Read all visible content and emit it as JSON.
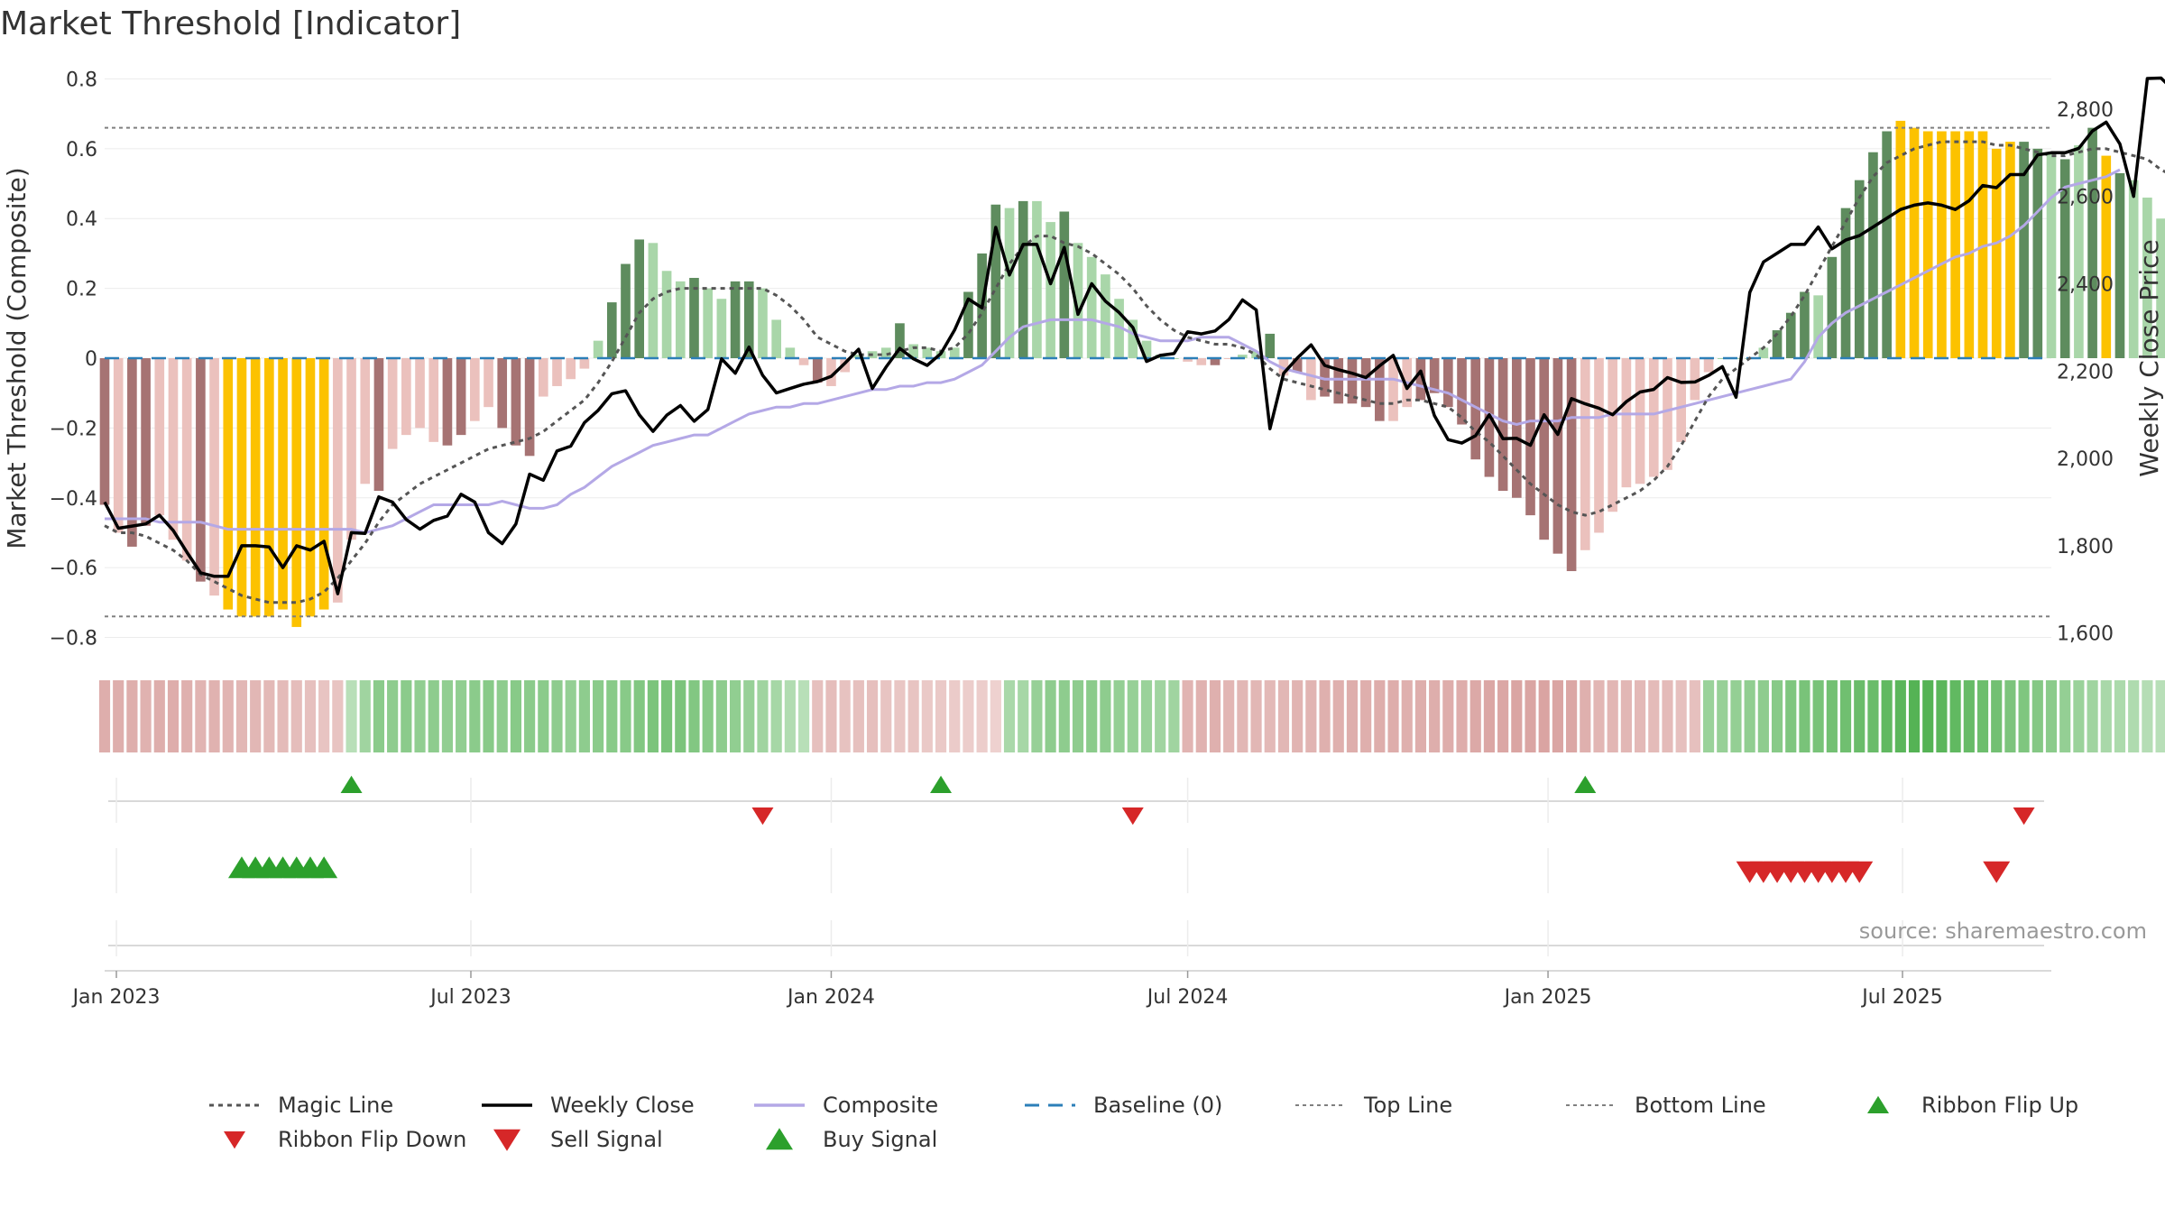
{
  "title": "Market Threshold [Indicator]",
  "source": "source: sharemaestro.com",
  "colors": {
    "bull_dark": "#5e8c5e",
    "bull_light": "#a9d6a9",
    "bear_dark": "#a67373",
    "bear_light": "#ebc1bd",
    "extreme": "#fcc200",
    "weekly_close": "#000000",
    "composite": "#b4a8e6",
    "magic": "#555555",
    "baseline": "#2c7fb8",
    "threshold": "#808080",
    "buy": "#2ca02c",
    "sell": "#d62728"
  },
  "chart_data": {
    "type": "bar",
    "title": "Market Threshold [Indicator]",
    "ylabel_left": "Market Threshold (Composite)",
    "ylabel_right": "Weekly Close Price",
    "ylim_left": [
      -0.84,
      0.84
    ],
    "ylim_right": [
      1558,
      2901
    ],
    "yticks_left": [
      0.8,
      0.6,
      0.4,
      0.2,
      0,
      -0.2,
      -0.4,
      -0.6,
      -0.8
    ],
    "yticks_left_labels": [
      "0.8",
      "0.6",
      "0.4",
      "0.2",
      "0",
      "−0.2",
      "−0.4",
      "−0.6",
      "−0.8"
    ],
    "yticks_right": [
      2800,
      2600,
      2400,
      2200,
      2000,
      1800,
      1600
    ],
    "yticks_right_labels": [
      "2,800",
      "2,600",
      "2,400",
      "2,200",
      "2,000",
      "1,800",
      "1,600"
    ],
    "x_start": "2022-12-26",
    "x_end": "2025-09-15",
    "xticks": [
      {
        "date": "2023-01-01",
        "label": "Jan 2023"
      },
      {
        "date": "2023-07-01",
        "label": "Jul 2023"
      },
      {
        "date": "2024-01-01",
        "label": "Jan 2024"
      },
      {
        "date": "2024-07-01",
        "label": "Jul 2024"
      },
      {
        "date": "2025-01-01",
        "label": "Jan 2025"
      },
      {
        "date": "2025-07-01",
        "label": "Jul 2025"
      }
    ],
    "top_line": 0.66,
    "bottom_line": -0.74,
    "baseline": 0,
    "weeks_start": "2022-12-26",
    "bars": [
      -0.42,
      -0.5,
      -0.54,
      -0.48,
      -0.45,
      -0.52,
      -0.58,
      -0.64,
      -0.68,
      -0.72,
      -0.74,
      -0.74,
      -0.74,
      -0.72,
      -0.77,
      -0.74,
      -0.72,
      -0.7,
      -0.52,
      -0.36,
      -0.38,
      -0.26,
      -0.22,
      -0.2,
      -0.24,
      -0.25,
      -0.22,
      -0.18,
      -0.14,
      -0.2,
      -0.25,
      -0.28,
      -0.11,
      -0.08,
      -0.06,
      -0.03,
      0.05,
      0.16,
      0.27,
      0.34,
      0.33,
      0.25,
      0.22,
      0.23,
      0.2,
      0.17,
      0.22,
      0.22,
      0.2,
      0.11,
      0.03,
      -0.02,
      -0.07,
      -0.08,
      -0.04,
      0.01,
      0.02,
      0.03,
      0.1,
      0.04,
      0.03,
      0.02,
      0.03,
      0.19,
      0.3,
      0.44,
      0.43,
      0.45,
      0.45,
      0.39,
      0.42,
      0.33,
      0.29,
      0.24,
      0.17,
      0.11,
      0.05,
      0.01,
      0.0,
      -0.01,
      -0.02,
      -0.02,
      0.0,
      0.01,
      0.02,
      0.07,
      -0.05,
      -0.04,
      -0.12,
      -0.11,
      -0.13,
      -0.13,
      -0.14,
      -0.18,
      -0.18,
      -0.14,
      -0.12,
      -0.1,
      -0.14,
      -0.19,
      -0.29,
      -0.34,
      -0.38,
      -0.4,
      -0.45,
      -0.52,
      -0.56,
      -0.61,
      -0.55,
      -0.5,
      -0.44,
      -0.37,
      -0.36,
      -0.34,
      -0.32,
      -0.24,
      -0.12,
      -0.04,
      0.0,
      0.0,
      0.0,
      0.03,
      0.08,
      0.13,
      0.19,
      0.18,
      0.29,
      0.43,
      0.51,
      0.59,
      0.65,
      0.68,
      0.66,
      0.65,
      0.65,
      0.65,
      0.65,
      0.65,
      0.6,
      0.62,
      0.62,
      0.6,
      0.59,
      0.57,
      0.61,
      0.66,
      0.58,
      0.53,
      0.51,
      0.46,
      0.4
    ],
    "bar_colors": [
      "bear_dark",
      "bear_light",
      "bear_dark",
      "bear_dark",
      "bear_light",
      "bear_light",
      "bear_light",
      "bear_dark",
      "bear_light",
      "extreme",
      "extreme",
      "extreme",
      "extreme",
      "extreme",
      "extreme",
      "extreme",
      "extreme",
      "bear_light",
      "bear_light",
      "bear_light",
      "bear_dark",
      "bear_light",
      "bear_light",
      "bear_light",
      "bear_light",
      "bear_dark",
      "bear_dark",
      "bear_light",
      "bear_light",
      "bear_dark",
      "bear_dark",
      "bear_dark",
      "bear_light",
      "bear_light",
      "bear_light",
      "bear_light",
      "bull_light",
      "bull_dark",
      "bull_dark",
      "bull_dark",
      "bull_light",
      "bull_light",
      "bull_light",
      "bull_dark",
      "bull_light",
      "bull_light",
      "bull_dark",
      "bull_dark",
      "bull_light",
      "bull_light",
      "bull_light",
      "bear_light",
      "bear_dark",
      "bear_light",
      "bear_light",
      "bull_light",
      "bull_light",
      "bull_light",
      "bull_dark",
      "bull_light",
      "bull_light",
      "bull_light",
      "bull_light",
      "bull_dark",
      "bull_dark",
      "bull_dark",
      "bull_light",
      "bull_dark",
      "bull_light",
      "bull_light",
      "bull_dark",
      "bull_light",
      "bull_light",
      "bull_light",
      "bull_light",
      "bull_light",
      "bull_light",
      "bull_light",
      "bull_light",
      "bear_light",
      "bear_light",
      "bear_dark",
      "bear_light",
      "bull_light",
      "bull_light",
      "bull_dark",
      "bear_light",
      "bear_dark",
      "bear_light",
      "bear_dark",
      "bear_dark",
      "bear_dark",
      "bear_dark",
      "bear_dark",
      "bear_light",
      "bear_light",
      "bear_dark",
      "bear_dark",
      "bear_dark",
      "bear_dark",
      "bear_dark",
      "bear_dark",
      "bear_dark",
      "bear_dark",
      "bear_dark",
      "bear_dark",
      "bear_dark",
      "bear_dark",
      "bear_light",
      "bear_light",
      "bear_light",
      "bear_light",
      "bear_light",
      "bear_light",
      "bear_light",
      "bear_light",
      "bear_light",
      "bear_light",
      "bull_light",
      "bull_light",
      "bull_light",
      "bull_light",
      "bull_dark",
      "bull_dark",
      "bull_dark",
      "bull_light",
      "bull_dark",
      "bull_dark",
      "bull_dark",
      "bull_dark",
      "bull_dark",
      "extreme",
      "extreme",
      "extreme",
      "extreme",
      "extreme",
      "extreme",
      "extreme",
      "extreme",
      "extreme",
      "bull_dark",
      "bull_dark",
      "bull_light",
      "bull_dark",
      "bull_light",
      "bull_dark",
      "extreme",
      "bull_dark",
      "bull_light",
      "bull_light",
      "bull_light",
      "bull_light",
      "bull_light"
    ],
    "composite": [
      -0.46,
      -0.46,
      -0.46,
      -0.46,
      -0.47,
      -0.47,
      -0.47,
      -0.47,
      -0.48,
      -0.49,
      -0.49,
      -0.49,
      -0.49,
      -0.49,
      -0.49,
      -0.49,
      -0.49,
      -0.49,
      -0.49,
      -0.5,
      -0.49,
      -0.48,
      -0.46,
      -0.44,
      -0.42,
      -0.42,
      -0.42,
      -0.42,
      -0.42,
      -0.41,
      -0.42,
      -0.43,
      -0.43,
      -0.42,
      -0.39,
      -0.37,
      -0.34,
      -0.31,
      -0.29,
      -0.27,
      -0.25,
      -0.24,
      -0.23,
      -0.22,
      -0.22,
      -0.2,
      -0.18,
      -0.16,
      -0.15,
      -0.14,
      -0.14,
      -0.13,
      -0.13,
      -0.12,
      -0.11,
      -0.1,
      -0.09,
      -0.09,
      -0.08,
      -0.08,
      -0.07,
      -0.07,
      -0.06,
      -0.04,
      -0.02,
      0.02,
      0.06,
      0.09,
      0.1,
      0.11,
      0.11,
      0.11,
      0.11,
      0.1,
      0.09,
      0.07,
      0.06,
      0.05,
      0.05,
      0.05,
      0.06,
      0.06,
      0.06,
      0.04,
      0.02,
      -0.01,
      -0.03,
      -0.04,
      -0.05,
      -0.06,
      -0.06,
      -0.06,
      -0.06,
      -0.06,
      -0.06,
      -0.07,
      -0.08,
      -0.09,
      -0.1,
      -0.12,
      -0.14,
      -0.16,
      -0.18,
      -0.19,
      -0.18,
      -0.18,
      -0.18,
      -0.17,
      -0.17,
      -0.17,
      -0.16,
      -0.16,
      -0.16,
      -0.16,
      -0.15,
      -0.14,
      -0.13,
      -0.12,
      -0.11,
      -0.1,
      -0.09,
      -0.08,
      -0.07,
      -0.06,
      -0.01,
      0.06,
      0.1,
      0.13,
      0.15,
      0.17,
      0.19,
      0.21,
      0.23,
      0.25,
      0.27,
      0.29,
      0.3,
      0.32,
      0.33,
      0.35,
      0.38,
      0.42,
      0.46,
      0.49,
      0.5,
      0.51,
      0.52,
      0.54
    ],
    "magic_line": [
      -0.48,
      -0.5,
      -0.5,
      -0.51,
      -0.53,
      -0.55,
      -0.58,
      -0.62,
      -0.64,
      -0.66,
      -0.68,
      -0.69,
      -0.7,
      -0.7,
      -0.7,
      -0.69,
      -0.67,
      -0.63,
      -0.58,
      -0.53,
      -0.47,
      -0.42,
      -0.39,
      -0.36,
      -0.34,
      -0.32,
      -0.3,
      -0.28,
      -0.26,
      -0.25,
      -0.24,
      -0.23,
      -0.21,
      -0.18,
      -0.15,
      -0.12,
      -0.07,
      -0.01,
      0.06,
      0.13,
      0.17,
      0.19,
      0.2,
      0.2,
      0.2,
      0.2,
      0.2,
      0.2,
      0.2,
      0.18,
      0.15,
      0.11,
      0.06,
      0.04,
      0.02,
      0.01,
      0.01,
      0.01,
      0.02,
      0.03,
      0.03,
      0.02,
      0.03,
      0.07,
      0.13,
      0.2,
      0.27,
      0.32,
      0.35,
      0.35,
      0.33,
      0.32,
      0.3,
      0.27,
      0.24,
      0.2,
      0.15,
      0.11,
      0.08,
      0.06,
      0.05,
      0.04,
      0.04,
      0.03,
      0.01,
      -0.03,
      -0.06,
      -0.07,
      -0.08,
      -0.09,
      -0.1,
      -0.11,
      -0.12,
      -0.13,
      -0.13,
      -0.12,
      -0.12,
      -0.13,
      -0.14,
      -0.17,
      -0.21,
      -0.24,
      -0.28,
      -0.32,
      -0.36,
      -0.39,
      -0.42,
      -0.44,
      -0.45,
      -0.44,
      -0.42,
      -0.4,
      -0.38,
      -0.35,
      -0.31,
      -0.25,
      -0.18,
      -0.11,
      -0.06,
      -0.03,
      0.0,
      0.03,
      0.07,
      0.12,
      0.18,
      0.25,
      0.32,
      0.39,
      0.46,
      0.52,
      0.56,
      0.58,
      0.6,
      0.61,
      0.62,
      0.62,
      0.62,
      0.62,
      0.61,
      0.61,
      0.6,
      0.59,
      0.58,
      0.58,
      0.59,
      0.6,
      0.6,
      0.59,
      0.58,
      0.57,
      0.54,
      0.52
    ],
    "weekly_close": [
      1900,
      1840,
      1845,
      1850,
      1870,
      1835,
      1785,
      1738,
      1730,
      1730,
      1800,
      1800,
      1797,
      1750,
      1800,
      1790,
      1810,
      1690,
      1830,
      1828,
      1912,
      1900,
      1860,
      1838,
      1858,
      1868,
      1918,
      1900,
      1830,
      1805,
      1850,
      1964,
      1950,
      2017,
      2028,
      2082,
      2110,
      2148,
      2155,
      2100,
      2062,
      2099,
      2121,
      2085,
      2112,
      2228,
      2195,
      2255,
      2190,
      2150,
      2160,
      2170,
      2176,
      2188,
      2218,
      2250,
      2160,
      2209,
      2252,
      2228,
      2213,
      2240,
      2294,
      2365,
      2345,
      2529,
      2420,
      2490,
      2490,
      2400,
      2483,
      2330,
      2400,
      2360,
      2334,
      2300,
      2222,
      2236,
      2240,
      2290,
      2285,
      2292,
      2318,
      2363,
      2340,
      2068,
      2195,
      2230,
      2260,
      2213,
      2203,
      2195,
      2185,
      2212,
      2236,
      2160,
      2200,
      2098,
      2043,
      2035,
      2052,
      2100,
      2045,
      2046,
      2030,
      2100,
      2055,
      2137,
      2125,
      2115,
      2100,
      2130,
      2152,
      2158,
      2185,
      2174,
      2175,
      2190,
      2210,
      2140,
      2380,
      2450,
      2470,
      2490,
      2490,
      2530,
      2480,
      2500,
      2510,
      2530,
      2550,
      2570,
      2580,
      2585,
      2580,
      2570,
      2590,
      2625,
      2620,
      2650,
      2650,
      2695,
      2700,
      2700,
      2710,
      2750,
      2770,
      2720,
      2600,
      2870,
      2871,
      2840,
      2841,
      2870,
      2840,
      2840
    ],
    "ribbon_values": [
      -0.45,
      -0.45,
      -0.44,
      -0.4,
      -0.45,
      -0.46,
      -0.42,
      -0.38,
      -0.4,
      -0.38,
      -0.34,
      -0.34,
      -0.32,
      -0.3,
      -0.28,
      -0.25,
      -0.2,
      -0.2,
      0.2,
      0.36,
      0.5,
      0.48,
      0.5,
      0.46,
      0.48,
      0.46,
      0.46,
      0.5,
      0.52,
      0.48,
      0.52,
      0.5,
      0.5,
      0.48,
      0.44,
      0.48,
      0.5,
      0.52,
      0.52,
      0.56,
      0.6,
      0.62,
      0.6,
      0.56,
      0.52,
      0.48,
      0.46,
      0.42,
      0.36,
      0.32,
      0.25,
      0.2,
      -0.25,
      -0.28,
      -0.22,
      -0.24,
      -0.26,
      -0.2,
      -0.18,
      -0.2,
      -0.15,
      -0.15,
      -0.12,
      -0.1,
      -0.1,
      -0.06,
      0.3,
      0.32,
      0.42,
      0.48,
      0.48,
      0.48,
      0.5,
      0.48,
      0.44,
      0.42,
      0.4,
      0.36,
      0.36,
      -0.38,
      -0.4,
      -0.42,
      -0.36,
      -0.35,
      -0.34,
      -0.32,
      -0.35,
      -0.38,
      -0.38,
      -0.42,
      -0.42,
      -0.45,
      -0.43,
      -0.46,
      -0.46,
      -0.42,
      -0.44,
      -0.45,
      -0.46,
      -0.46,
      -0.5,
      -0.52,
      -0.52,
      -0.54,
      -0.54,
      -0.56,
      -0.54,
      -0.52,
      -0.42,
      -0.36,
      -0.36,
      -0.34,
      -0.32,
      -0.3,
      -0.3,
      -0.25,
      -0.25,
      0.4,
      0.42,
      0.44,
      0.46,
      0.48,
      0.52,
      0.58,
      0.62,
      0.62,
      0.66,
      0.68,
      0.72,
      0.72,
      0.78,
      0.82,
      0.86,
      0.86,
      0.82,
      0.78,
      0.74,
      0.7,
      0.66,
      0.6,
      0.58,
      0.54,
      0.5,
      0.44,
      0.4,
      0.36,
      0.3,
      0.28,
      0.26,
      0.22,
      0.2,
      -0.3,
      -0.28
    ],
    "ribbon_flip_up": [
      "2023-05-01",
      "2024-02-26",
      "2025-01-20"
    ],
    "ribbon_flip_down": [
      "2023-11-27",
      "2024-06-03",
      "2025-09-01"
    ],
    "buy_signals": [
      "2023-03-06",
      "2023-03-13",
      "2023-03-20",
      "2023-03-27",
      "2023-04-03",
      "2023-04-10",
      "2023-04-17"
    ],
    "sell_signals": [
      "2025-04-14",
      "2025-04-21",
      "2025-04-28",
      "2025-05-05",
      "2025-05-12",
      "2025-05-19",
      "2025-05-26",
      "2025-06-02",
      "2025-06-09",
      "2025-08-18"
    ],
    "legend": [
      {
        "label": "Magic Line",
        "style": "dotted",
        "color": "magic"
      },
      {
        "label": "Weekly Close",
        "style": "solid",
        "color": "weekly_close"
      },
      {
        "label": "Composite",
        "style": "solid",
        "color": "composite"
      },
      {
        "label": "Baseline (0)",
        "style": "dashed",
        "color": "baseline"
      },
      {
        "label": "Top Line",
        "style": "dotted-fine",
        "color": "threshold"
      },
      {
        "label": "Bottom Line",
        "style": "dotted-fine",
        "color": "threshold"
      },
      {
        "label": "Ribbon Flip Up",
        "style": "tri-up",
        "color": "buy"
      },
      {
        "label": "Ribbon Flip Down",
        "style": "tri-down",
        "color": "sell"
      },
      {
        "label": "Sell Signal",
        "style": "tri-down-big",
        "color": "sell"
      },
      {
        "label": "Buy Signal",
        "style": "tri-up-big",
        "color": "buy"
      }
    ]
  }
}
